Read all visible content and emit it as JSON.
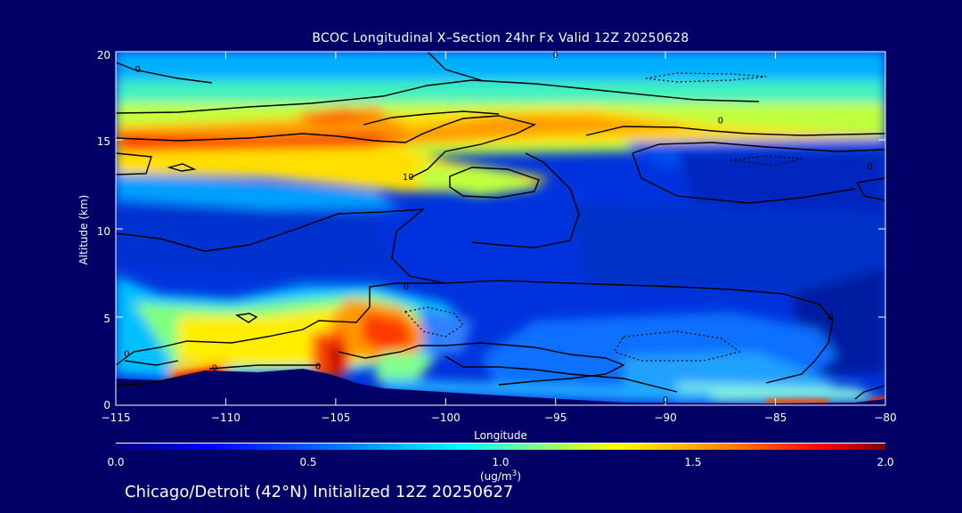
{
  "chart_data": {
    "type": "heatmap",
    "title": "BCOC Longitudinal X–Section 24hr  Fx Valid 12Z 20250628",
    "xlabel": "Longitude",
    "ylabel": "Altitude (km)",
    "xlim": [
      -115,
      -80
    ],
    "ylim": [
      0,
      20
    ],
    "x_ticks": [
      "−115",
      "−110",
      "−105",
      "−100",
      "−95",
      "−90",
      "−85",
      "−80"
    ],
    "x_tick_values": [
      -115,
      -110,
      -105,
      -100,
      -95,
      -90,
      -85,
      -80
    ],
    "y_ticks": [
      "0",
      "5",
      "10",
      "15",
      "20"
    ],
    "y_tick_values": [
      0,
      5,
      10,
      15,
      20
    ],
    "colorbar": {
      "range": [
        0.0,
        2.0
      ],
      "ticks": [
        "0.0",
        "0.5",
        "1.0",
        "1.5",
        "2.0"
      ],
      "tick_values": [
        0.0,
        0.5,
        1.0,
        1.5,
        2.0
      ],
      "unit_base": "(ug/m",
      "unit_sup": "3",
      "unit_end": ")",
      "colors": [
        "#000080",
        "#0000ff",
        "#0080ff",
        "#00ffff",
        "#80ff80",
        "#ffff00",
        "#ff8000",
        "#ff0000",
        "#800000"
      ]
    },
    "contour_labels": [
      {
        "text": "0",
        "x": -114,
        "y": 19
      },
      {
        "text": "0",
        "x": -95,
        "y": 19.8
      },
      {
        "text": "0",
        "x": -87.5,
        "y": 16.1
      },
      {
        "text": "0",
        "x": -80.7,
        "y": 13.5
      },
      {
        "text": "10",
        "x": -101.7,
        "y": 12.9
      },
      {
        "text": "0",
        "x": -101.8,
        "y": 6.7
      },
      {
        "text": "0",
        "x": -82.5,
        "y": 5.0
      },
      {
        "text": "0",
        "x": -114.5,
        "y": 2.9
      },
      {
        "text": "0",
        "x": -110.5,
        "y": 2.1
      },
      {
        "text": "0",
        "x": -105.8,
        "y": 2.2
      },
      {
        "text": "0",
        "x": -90,
        "y": 0.3
      }
    ]
  },
  "footer": "Chicago/Detroit (42°N) Initialized 12Z 20250627"
}
